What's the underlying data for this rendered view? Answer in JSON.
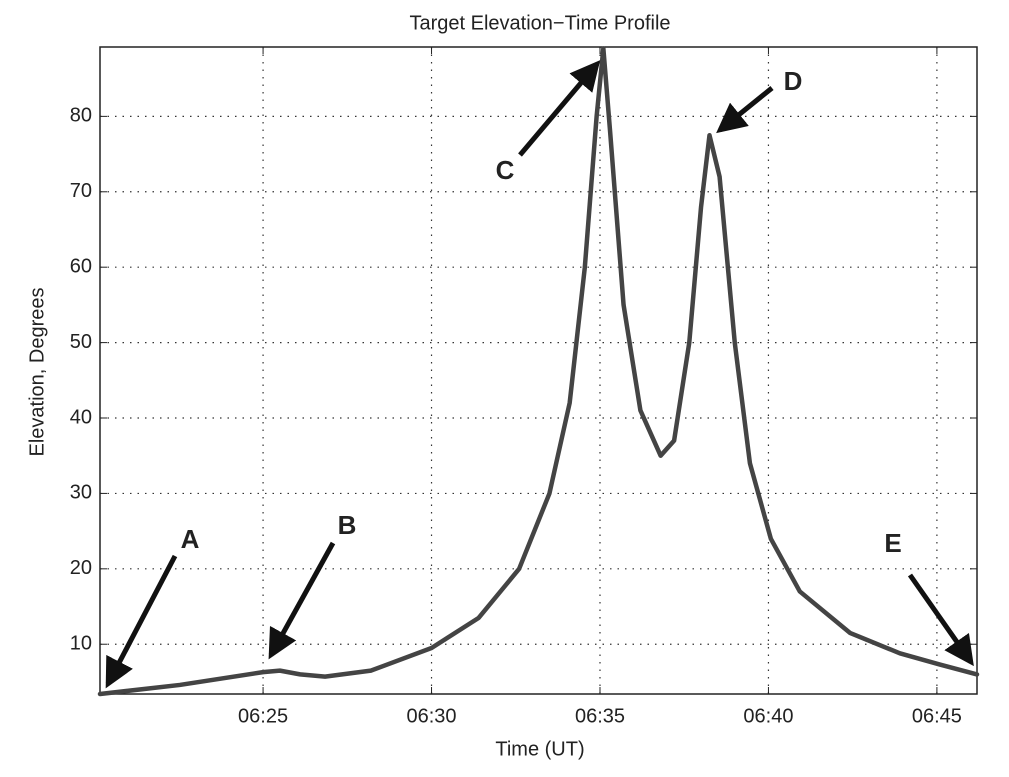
{
  "chart_data": {
    "type": "line",
    "title": "Target Elevation−Time Profile",
    "x_label": "Time (UT)",
    "y_label": "Elevation, Degrees",
    "x": [
      380.16,
      382.53,
      385.0,
      385.5,
      386.1,
      386.84,
      388.2,
      390.0,
      391.4,
      392.6,
      393.5,
      394.1,
      394.55,
      394.9,
      395.1,
      395.3,
      395.7,
      396.2,
      396.8,
      397.2,
      397.65,
      398.0,
      398.25,
      398.55,
      399.0,
      399.45,
      400.07,
      400.93,
      402.42,
      403.9,
      405.09,
      406.19
    ],
    "series": [
      {
        "name": "Elevation",
        "color": "#444444",
        "values": [
          3.4,
          4.6,
          6.3,
          6.5,
          6.0,
          5.7,
          6.5,
          9.5,
          13.5,
          20,
          30,
          42,
          60,
          80,
          89,
          78,
          55,
          41,
          35,
          37,
          50,
          68,
          77.5,
          72,
          50,
          34,
          24,
          17,
          11.5,
          8.8,
          7.3,
          6.0
        ]
      }
    ],
    "xlim": [
      380.16,
      406.19
    ],
    "ylim": [
      3.4,
      89.2
    ],
    "xticks": [
      {
        "value": 385,
        "label": "06:25"
      },
      {
        "value": 390,
        "label": "06:30"
      },
      {
        "value": 395,
        "label": "06:35"
      },
      {
        "value": 400,
        "label": "06:40"
      },
      {
        "value": 405,
        "label": "06:45"
      }
    ],
    "yticks": [
      10,
      20,
      30,
      40,
      50,
      60,
      70,
      80
    ],
    "grid": true,
    "annotations": [
      "A",
      "B",
      "C",
      "D",
      "E"
    ]
  }
}
